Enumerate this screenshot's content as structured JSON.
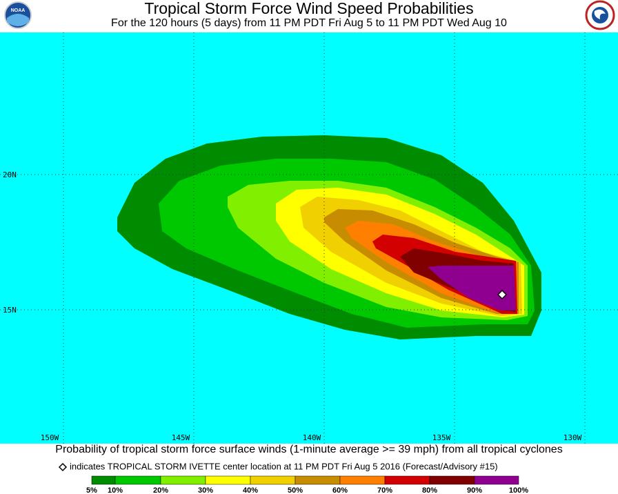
{
  "header": {
    "title": "Tropical Storm Force Wind Speed Probabilities",
    "subtitle": "For the 120 hours (5 days) from 11 PM PDT Fri Aug 5 to 11 PM PDT Wed Aug 10",
    "logo_left": "NOAA"
  },
  "map": {
    "latitude_labels": [
      "20N",
      "15N"
    ],
    "longitude_labels": [
      "150W",
      "145W",
      "140W",
      "135W",
      "130W"
    ]
  },
  "footer": {
    "caption": "Probability of tropical storm force surface winds (1-minute average >= 39 mph) from all tropical cyclones",
    "marker_note": "indicates TROPICAL STORM IVETTE center location at 11 PM PDT Fri Aug 5 2016 (Forecast/Advisory #15)"
  },
  "legend": {
    "colors": [
      "#008c00",
      "#00c800",
      "#80f000",
      "#ffff00",
      "#f0d000",
      "#c88c00",
      "#ff8000",
      "#d20000",
      "#800000",
      "#900090"
    ],
    "labels": [
      "5%",
      "10%",
      "20%",
      "30%",
      "40%",
      "50%",
      "60%",
      "70%",
      "80%",
      "90%",
      "100%"
    ]
  }
}
